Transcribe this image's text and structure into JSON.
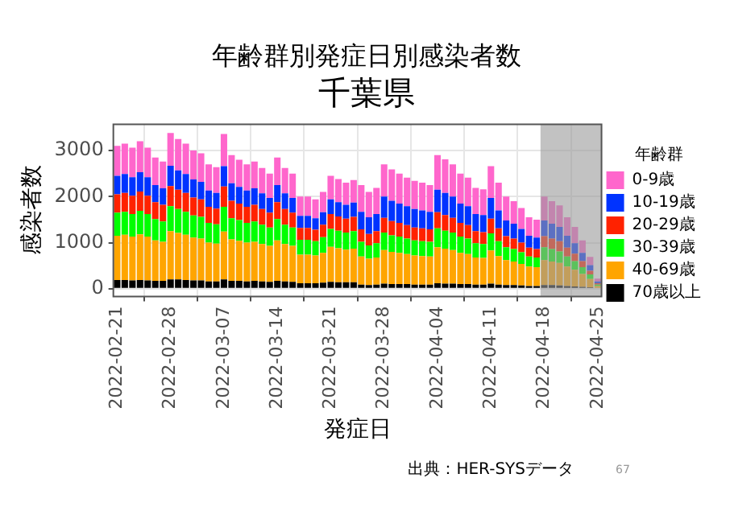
{
  "chart_data": {
    "type": "bar",
    "title": "年齢群別発症日別感染者数",
    "subtitle": "千葉県",
    "xlabel": "発症日",
    "ylabel": "感染者数",
    "legend_title": "年齢群",
    "x": [
      "2022-02-21",
      "2022-02-22",
      "2022-02-23",
      "2022-02-24",
      "2022-02-25",
      "2022-02-26",
      "2022-02-27",
      "2022-02-28",
      "2022-03-01",
      "2022-03-02",
      "2022-03-03",
      "2022-03-04",
      "2022-03-05",
      "2022-03-06",
      "2022-03-07",
      "2022-03-08",
      "2022-03-09",
      "2022-03-10",
      "2022-03-11",
      "2022-03-12",
      "2022-03-13",
      "2022-03-14",
      "2022-03-15",
      "2022-03-16",
      "2022-03-17",
      "2022-03-18",
      "2022-03-19",
      "2022-03-20",
      "2022-03-21",
      "2022-03-22",
      "2022-03-23",
      "2022-03-24",
      "2022-03-25",
      "2022-03-26",
      "2022-03-27",
      "2022-03-28",
      "2022-03-29",
      "2022-03-30",
      "2022-03-31",
      "2022-04-01",
      "2022-04-02",
      "2022-04-03",
      "2022-04-04",
      "2022-04-05",
      "2022-04-06",
      "2022-04-07",
      "2022-04-08",
      "2022-04-09",
      "2022-04-10",
      "2022-04-11",
      "2022-04-12",
      "2022-04-13",
      "2022-04-14",
      "2022-04-15",
      "2022-04-16",
      "2022-04-17",
      "2022-04-18",
      "2022-04-19",
      "2022-04-20",
      "2022-04-21",
      "2022-04-22",
      "2022-04-23",
      "2022-04-24",
      "2022-04-25"
    ],
    "stacked": true,
    "series": [
      {
        "name": "70歳以上",
        "color": "#000000",
        "values": [
          190,
          190,
          180,
          190,
          180,
          170,
          170,
          200,
          200,
          190,
          180,
          180,
          160,
          160,
          200,
          170,
          170,
          160,
          170,
          160,
          150,
          170,
          160,
          150,
          120,
          120,
          120,
          130,
          150,
          140,
          140,
          140,
          90,
          80,
          90,
          110,
          100,
          100,
          100,
          90,
          90,
          90,
          120,
          110,
          110,
          100,
          100,
          90,
          90,
          110,
          90,
          80,
          80,
          70,
          60,
          60,
          80,
          80,
          70,
          60,
          50,
          40,
          30,
          null
        ]
      },
      {
        "name": "40-69歳",
        "color": "#ffa500",
        "values": [
          960,
          980,
          950,
          990,
          950,
          880,
          850,
          1050,
          1010,
          980,
          930,
          910,
          840,
          820,
          1040,
          900,
          870,
          840,
          850,
          810,
          780,
          880,
          810,
          780,
          620,
          620,
          600,
          650,
          760,
          740,
          710,
          730,
          610,
          570,
          590,
          730,
          700,
          680,
          650,
          630,
          620,
          610,
          780,
          760,
          730,
          680,
          650,
          590,
          580,
          720,
          620,
          540,
          510,
          470,
          420,
          410,
          540,
          510,
          490,
          420,
          360,
          280,
          180,
          60
        ]
      },
      {
        "name": "30-39歳",
        "color": "#00ff00",
        "values": [
          500,
          500,
          490,
          510,
          490,
          460,
          440,
          540,
          520,
          500,
          480,
          470,
          430,
          420,
          540,
          460,
          450,
          430,
          440,
          420,
          400,
          460,
          420,
          400,
          320,
          320,
          310,
          340,
          390,
          380,
          370,
          380,
          320,
          290,
          310,
          380,
          360,
          350,
          340,
          330,
          320,
          320,
          410,
          390,
          380,
          350,
          340,
          310,
          300,
          370,
          320,
          280,
          270,
          250,
          220,
          210,
          280,
          270,
          250,
          220,
          190,
          150,
          100,
          30
        ]
      },
      {
        "name": "20-29歳",
        "color": "#ff2200",
        "values": [
          400,
          410,
          400,
          420,
          400,
          370,
          360,
          440,
          420,
          410,
          390,
          380,
          350,
          340,
          440,
          380,
          360,
          350,
          360,
          340,
          320,
          370,
          340,
          320,
          260,
          260,
          250,
          270,
          320,
          310,
          300,
          310,
          270,
          250,
          260,
          320,
          310,
          300,
          290,
          280,
          280,
          270,
          350,
          340,
          320,
          300,
          290,
          260,
          260,
          320,
          280,
          240,
          230,
          210,
          190,
          180,
          240,
          230,
          220,
          190,
          160,
          130,
          80,
          30
        ]
      },
      {
        "name": "10-19歳",
        "color": "#0033ff",
        "values": [
          400,
          410,
          400,
          420,
          400,
          370,
          360,
          440,
          420,
          410,
          390,
          380,
          350,
          340,
          440,
          380,
          360,
          350,
          360,
          340,
          320,
          370,
          340,
          320,
          260,
          260,
          250,
          270,
          320,
          310,
          300,
          310,
          380,
          360,
          370,
          460,
          440,
          420,
          410,
          400,
          390,
          380,
          490,
          480,
          460,
          420,
          410,
          370,
          370,
          450,
          390,
          340,
          320,
          300,
          260,
          250,
          340,
          320,
          310,
          260,
          230,
          180,
          120,
          40
        ]
      },
      {
        "name": "0-9歳",
        "color": "#ff66cc",
        "values": [
          650,
          660,
          640,
          670,
          640,
          600,
          580,
          710,
          680,
          660,
          630,
          620,
          570,
          560,
          700,
          610,
          590,
          570,
          580,
          550,
          530,
          600,
          550,
          530,
          420,
          420,
          410,
          440,
          510,
          500,
          480,
          490,
          580,
          550,
          570,
          700,
          680,
          650,
          620,
          610,
          600,
          580,
          750,
          730,
          700,
          650,
          620,
          570,
          560,
          690,
          600,
          520,
          490,
          450,
          400,
          390,
          520,
          490,
          470,
          400,
          350,
          270,
          180,
          60
        ]
      }
    ],
    "xlim": [
      "2022-02-20T12:00",
      "2022-04-25T12:00"
    ],
    "xticks": [
      "2022-02-21",
      "2022-02-28",
      "2022-03-07",
      "2022-03-14",
      "2022-03-21",
      "2022-03-28",
      "2022-04-04",
      "2022-04-11",
      "2022-04-18",
      "2022-04-25"
    ],
    "ylim": [
      -170,
      3570
    ],
    "yticks": [
      0,
      1000,
      2000,
      3000
    ],
    "bands": [
      {
        "axis": "x",
        "from": "2022-04-17T12:00",
        "to": "2022-04-25T12:00",
        "color": "#999999"
      }
    ],
    "grid": true,
    "legend": "right",
    "annotations": [
      "出典：HER-SYSデータ",
      "67"
    ]
  }
}
